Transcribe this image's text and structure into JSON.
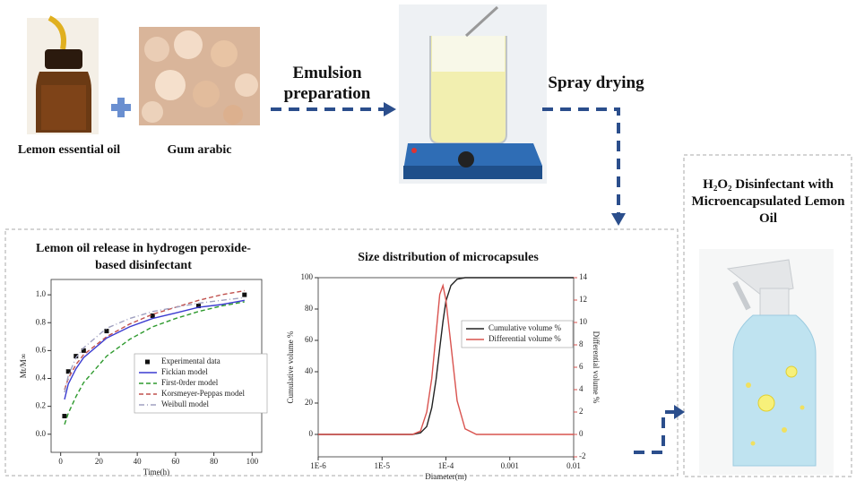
{
  "ingredients": [
    "Lemon essential oil",
    "Gum arabic"
  ],
  "steps": [
    "Emulsion preparation",
    "Spray drying"
  ],
  "product": {
    "title": "H₂O₂ Disinfectant with Microencapsulated Lemon Oil"
  },
  "chart_data": [
    {
      "type": "line",
      "title": "Lemon oil release in hydrogen peroxide-based disinfectant",
      "xlabel": "Time(h)",
      "ylabel": "Mt/M∞",
      "xlim": [
        -5,
        105
      ],
      "ylim": [
        -0.13,
        1.11
      ],
      "xticks": [
        0,
        20,
        40,
        60,
        80,
        100
      ],
      "yticks": [
        {
          "value": 0,
          "label": "0.0"
        },
        0.2,
        0.4,
        0.6,
        0.8,
        {
          "value": 1,
          "label": "1.0"
        }
      ],
      "legend": "center right",
      "series": [
        {
          "name": "Experimental data",
          "type": "scatter",
          "color": "#111111",
          "x": [
            2,
            4,
            8,
            12,
            24,
            48,
            72,
            96
          ],
          "values": [
            0.13,
            0.45,
            0.56,
            0.6,
            0.74,
            0.85,
            0.92,
            1.0
          ]
        },
        {
          "name": "Fickian model",
          "type": "line",
          "style": "solid",
          "color": "#3b3bd0",
          "x": [
            2,
            4,
            8,
            12,
            24,
            36,
            48,
            60,
            72,
            84,
            96
          ],
          "values": [
            0.25,
            0.36,
            0.47,
            0.55,
            0.69,
            0.77,
            0.83,
            0.87,
            0.91,
            0.93,
            0.96
          ]
        },
        {
          "name": "First-0rder model",
          "type": "line",
          "style": "dash",
          "color": "#2e9a2e",
          "x": [
            2,
            4,
            8,
            12,
            24,
            36,
            48,
            60,
            72,
            84,
            96
          ],
          "values": [
            0.07,
            0.15,
            0.27,
            0.37,
            0.56,
            0.68,
            0.77,
            0.83,
            0.88,
            0.92,
            0.95
          ]
        },
        {
          "name": "Korsmeyer-Peppas model",
          "type": "line",
          "style": "dash",
          "color": "#c0504d",
          "x": [
            2,
            4,
            8,
            12,
            24,
            36,
            48,
            60,
            72,
            84,
            96
          ],
          "values": [
            0.32,
            0.4,
            0.5,
            0.57,
            0.7,
            0.79,
            0.86,
            0.91,
            0.96,
            1.0,
            1.03
          ]
        },
        {
          "name": "Weibull model",
          "type": "line",
          "style": "dashdot",
          "color": "#a0a0c0",
          "x": [
            2,
            4,
            8,
            12,
            24,
            36,
            48,
            60,
            72,
            84,
            96
          ],
          "values": [
            0.3,
            0.42,
            0.55,
            0.62,
            0.76,
            0.83,
            0.88,
            0.91,
            0.94,
            0.96,
            0.98
          ]
        }
      ]
    },
    {
      "type": "line",
      "title": "Size distribution of microcapsules",
      "xlabel": "Diameter(m)",
      "ylabel": "Cumulative volume %",
      "y2label": "Differential volume %",
      "xscale": "log",
      "xlim": [
        1e-06,
        0.01
      ],
      "ylim": [
        -14.3,
        100
      ],
      "y2lim": [
        -2,
        14
      ],
      "xticks": [
        {
          "value": 1e-06,
          "label": "1E-6"
        },
        {
          "value": 1e-05,
          "label": "1E-5"
        },
        {
          "value": 0.0001,
          "label": "1E-4"
        },
        0.001,
        0.01
      ],
      "yticks": [
        0,
        20,
        40,
        60,
        80,
        100
      ],
      "y2ticks": [
        -2,
        0,
        2,
        4,
        6,
        8,
        10,
        12,
        14
      ],
      "legend": "upper right",
      "series": [
        {
          "name": "Cumulative volume %",
          "type": "line",
          "style": "solid",
          "color": "#222222",
          "x": [
            1e-06,
            3e-05,
            4e-05,
            5e-05,
            6e-05,
            7e-05,
            8e-05,
            9e-05,
            0.0001,
            0.00012,
            0.00015,
            0.0002,
            0.0003,
            0.01
          ],
          "values": [
            0,
            0,
            1,
            5,
            17,
            35,
            55,
            72,
            85,
            95,
            99,
            100,
            100,
            100
          ]
        },
        {
          "name": "Differential volume %",
          "type": "line",
          "style": "solid",
          "axis": "y2",
          "color": "#d9534f",
          "x": [
            1e-06,
            3e-05,
            4e-05,
            5e-05,
            6e-05,
            7e-05,
            8e-05,
            9e-05,
            0.0001,
            0.00012,
            0.00015,
            0.0002,
            0.0003,
            0.01
          ],
          "values": [
            0,
            0,
            0.3,
            2,
            5,
            9,
            12.5,
            13.3,
            12,
            8,
            3,
            0.5,
            0,
            0
          ]
        }
      ]
    }
  ]
}
